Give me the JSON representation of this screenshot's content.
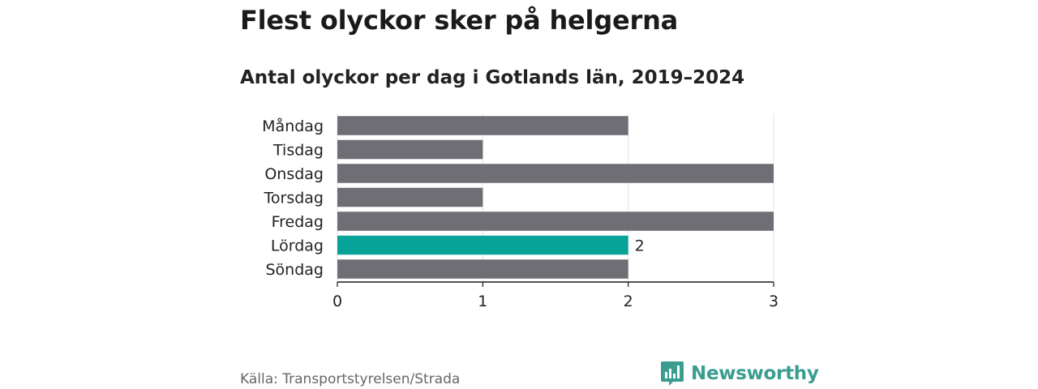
{
  "title": "Flest olyckor sker på helgerna",
  "subtitle": "Antal olyckor per dag i Gotlands län, 2019–2024",
  "source": "Källa: Transportstyrelsen/Strada",
  "brand": {
    "name": "Newsworthy",
    "icon": "newsworthy-logo-icon",
    "color": "#3a9d8f"
  },
  "colors": {
    "bar": "#6f6e75",
    "highlight": "#07a398",
    "grid": "#e3e3e3",
    "axis": "#1a1a1a"
  },
  "chart_data": {
    "type": "bar",
    "orientation": "horizontal",
    "title": "Flest olyckor sker på helgerna",
    "subtitle": "Antal olyckor per dag i Gotlands län, 2019–2024",
    "xlabel": "",
    "ylabel": "",
    "categories": [
      "Måndag",
      "Tisdag",
      "Onsdag",
      "Torsdag",
      "Fredag",
      "Lördag",
      "Söndag"
    ],
    "values": [
      2,
      1,
      3,
      1,
      3,
      2,
      2
    ],
    "highlight_category": "Lördag",
    "data_labels": [
      {
        "category": "Lördag",
        "text": "2"
      }
    ],
    "xlim": [
      0,
      3
    ],
    "xticks": [
      "0",
      "1",
      "2",
      "3"
    ],
    "grid": true,
    "legend": "none"
  }
}
